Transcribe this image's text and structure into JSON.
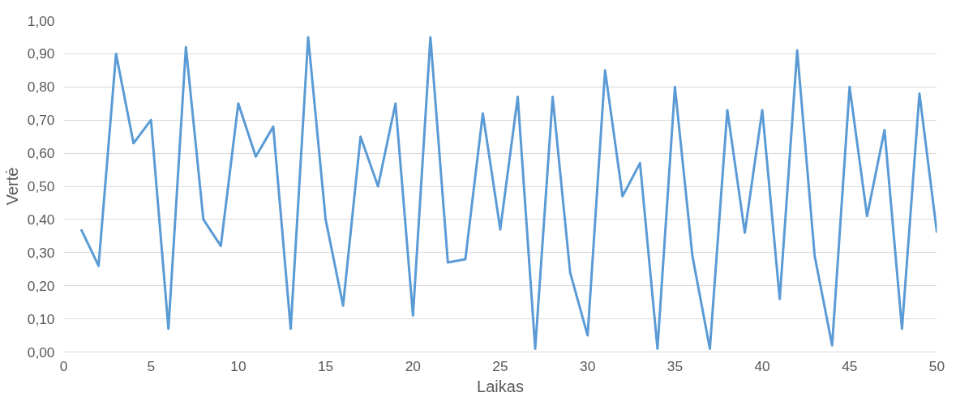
{
  "chart_data": {
    "type": "line",
    "xlabel": "Laikas",
    "ylabel": "Vertė",
    "x": [
      1,
      2,
      3,
      4,
      5,
      6,
      7,
      8,
      9,
      10,
      11,
      12,
      13,
      14,
      15,
      16,
      17,
      18,
      19,
      20,
      21,
      22,
      23,
      24,
      25,
      26,
      27,
      28,
      29,
      30,
      31,
      32,
      33,
      34,
      35,
      36,
      37,
      38,
      39,
      40,
      41,
      42,
      43,
      44,
      45,
      46,
      47,
      48,
      49,
      50
    ],
    "series": [
      {
        "color": "#5b9bd5",
        "values": [
          0.37,
          0.26,
          0.9,
          0.63,
          0.7,
          0.07,
          0.92,
          0.4,
          0.32,
          0.75,
          0.59,
          0.68,
          0.07,
          0.95,
          0.4,
          0.14,
          0.65,
          0.5,
          0.75,
          0.11,
          0.95,
          0.27,
          0.28,
          0.72,
          0.37,
          0.77,
          0.01,
          0.77,
          0.24,
          0.05,
          0.85,
          0.47,
          0.57,
          0.01,
          0.8,
          0.29,
          0.01,
          0.73,
          0.36,
          0.73,
          0.16,
          0.91,
          0.29,
          0.02,
          0.8,
          0.41,
          0.67,
          0.07,
          0.78,
          0.36
        ]
      }
    ],
    "xlim": [
      0,
      50
    ],
    "xticks": [
      0,
      5,
      10,
      15,
      20,
      25,
      30,
      35,
      40,
      45,
      50
    ],
    "ylim": [
      0,
      1
    ],
    "yticks": [
      {
        "value": 0,
        "label": "0,00"
      },
      {
        "value": 0.1,
        "label": "0,10"
      },
      {
        "value": 0.2,
        "label": "0,20"
      },
      {
        "value": 0.3,
        "label": "0,30"
      },
      {
        "value": 0.4,
        "label": "0,40"
      },
      {
        "value": 0.5,
        "label": "0,50"
      },
      {
        "value": 0.6,
        "label": "0,60"
      },
      {
        "value": 0.7,
        "label": "0,70"
      },
      {
        "value": 0.8,
        "label": "0,80"
      },
      {
        "value": 0.9,
        "label": "0,90"
      },
      {
        "value": 1,
        "label": "1,00"
      }
    ],
    "grid": "y",
    "marker": "none",
    "line_style": "solid"
  }
}
